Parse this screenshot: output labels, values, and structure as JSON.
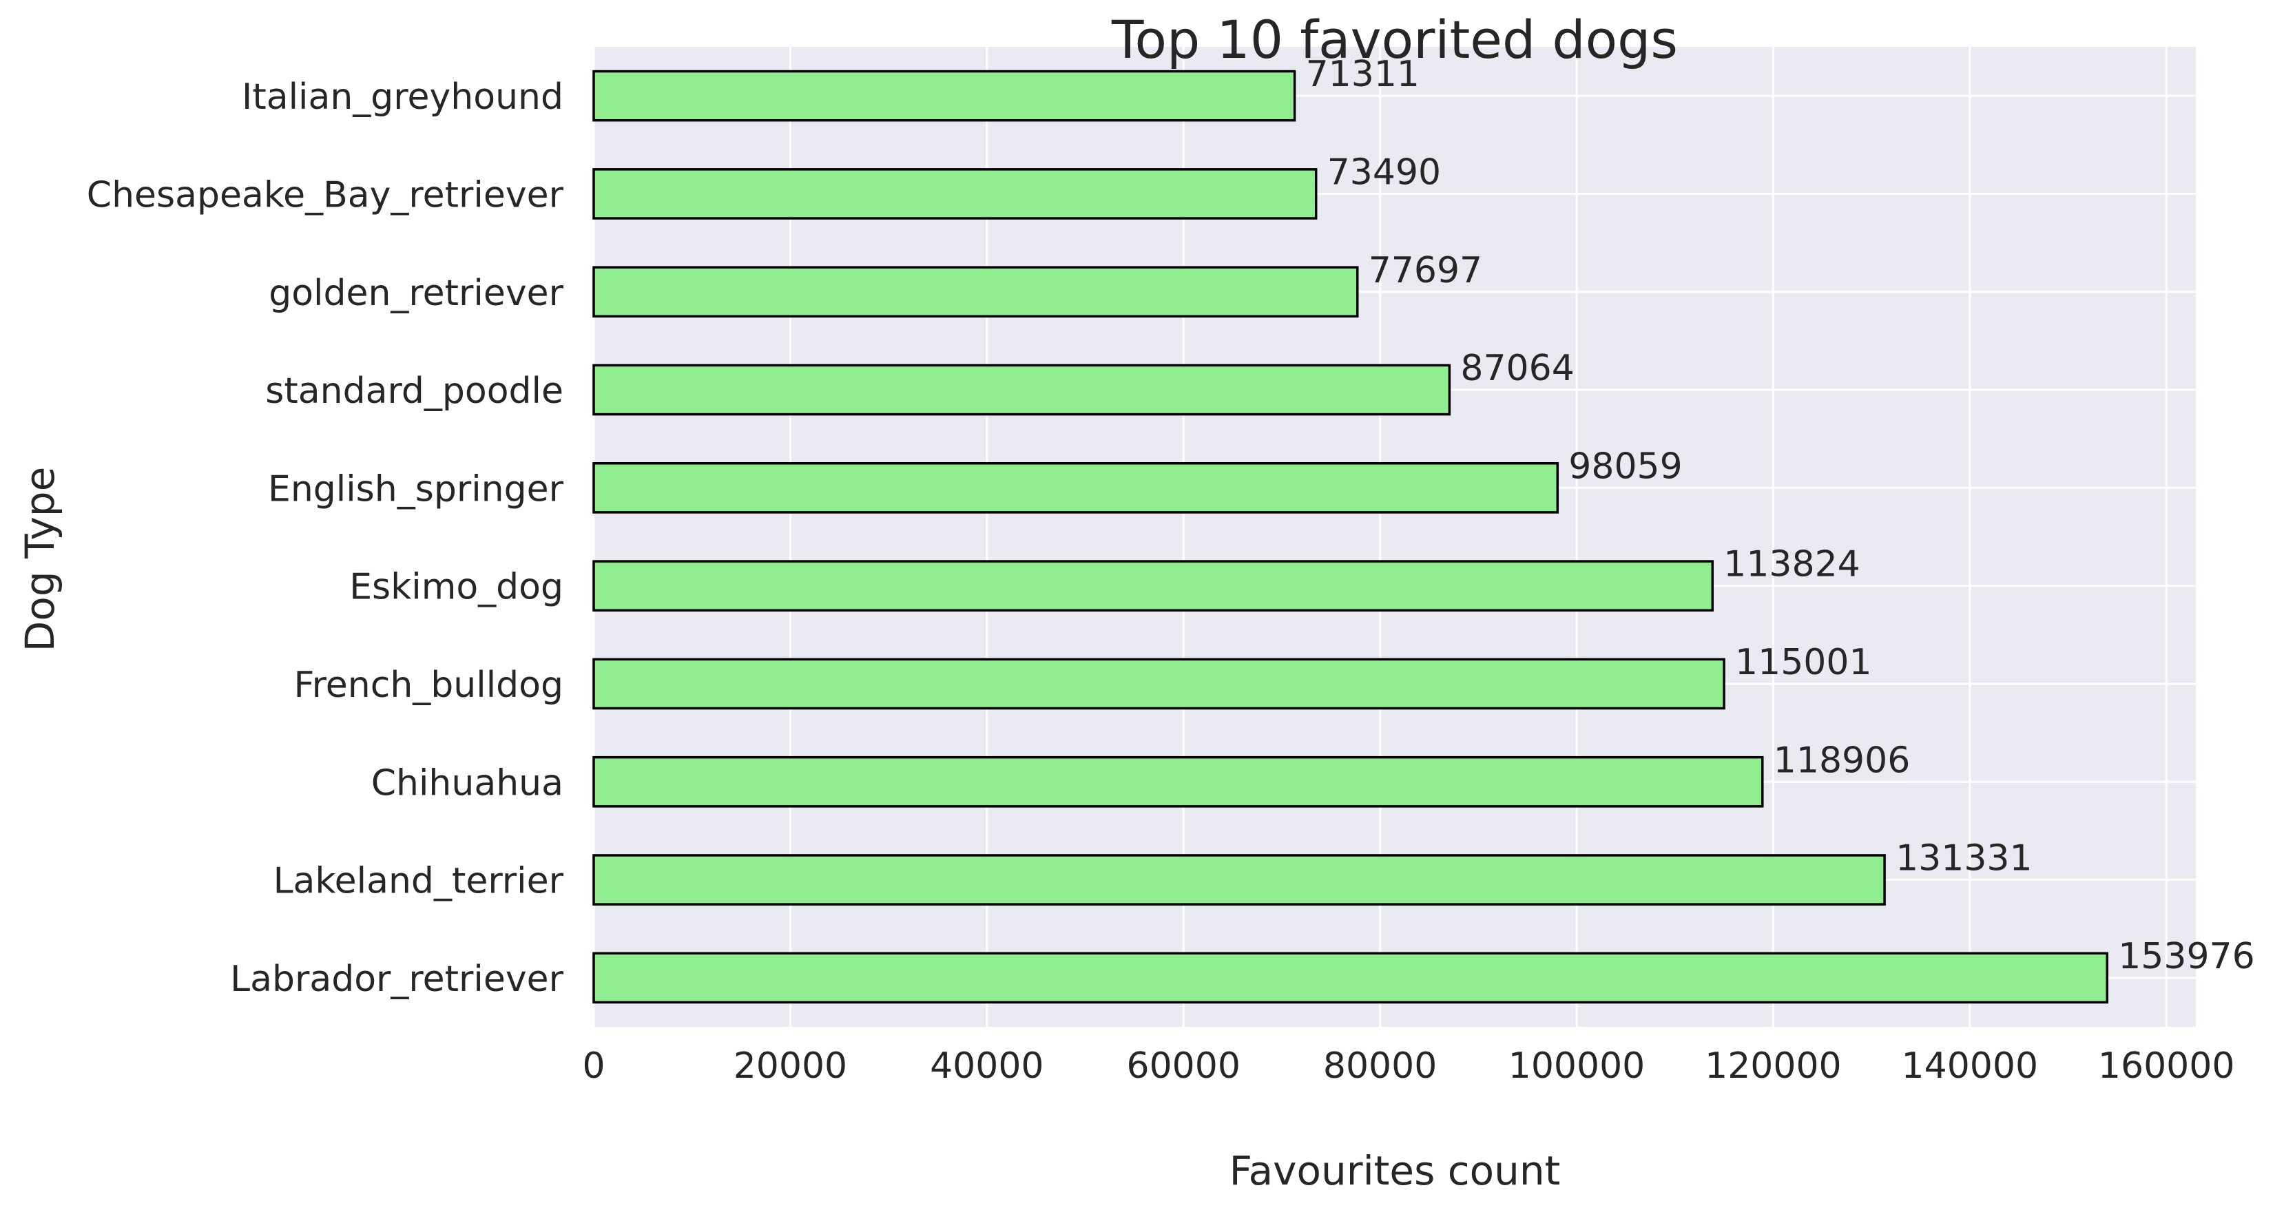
{
  "chart_data": {
    "type": "bar",
    "orientation": "horizontal",
    "title": "Top 10 favorited dogs",
    "xlabel": "Favourites count",
    "ylabel": "Dog Type",
    "xlim": [
      0,
      163000
    ],
    "xticks": [
      0,
      20000,
      40000,
      60000,
      80000,
      100000,
      120000,
      140000,
      160000
    ],
    "grid": true,
    "categories": [
      "Labrador_retriever",
      "Lakeland_terrier",
      "Chihuahua",
      "French_bulldog",
      "Eskimo_dog",
      "English_springer",
      "standard_poodle",
      "golden_retriever",
      "Chesapeake_Bay_retriever",
      "Italian_greyhound"
    ],
    "values": [
      153976,
      131331,
      118906,
      115001,
      113824,
      98059,
      87064,
      77697,
      73490,
      71311
    ],
    "colors": {
      "bar": "#90EE90",
      "bar_edge": "#000000",
      "plot_background": "#EAEAF2",
      "grid": "#FFFFFF",
      "text": "#262626"
    }
  }
}
